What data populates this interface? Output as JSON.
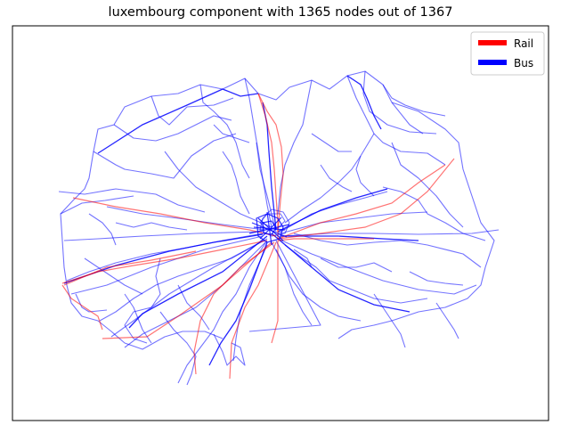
{
  "title": "luxembourg component with 1365 nodes out of 1367",
  "legend": {
    "placement": "top-right",
    "items": [
      {
        "label": "Rail",
        "color": "#ff0000"
      },
      {
        "label": "Bus",
        "color": "#0000ff"
      }
    ]
  },
  "colors": {
    "rail": "#ff0000",
    "bus": "#0000ff",
    "frame": "#000000",
    "background": "#ffffff"
  }
}
